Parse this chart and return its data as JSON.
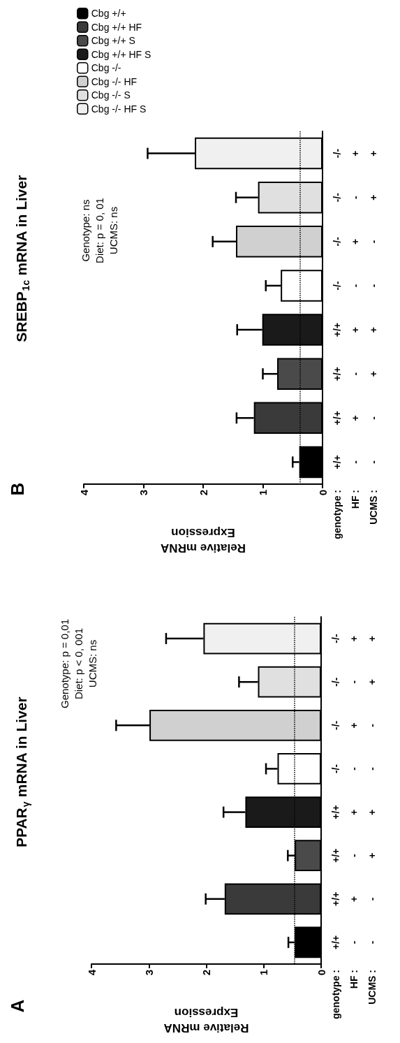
{
  "chart_data": [
    {
      "type": "bar",
      "orientation": "horizontal",
      "title": "PPAR$_{γ}$ mRNA in Liver",
      "xlabel": "Relative mRNA\nExpression",
      "ylabel": "genotype :\nHF :\nUCMS :",
      "categories": [
        "-/-\n+\n+",
        "-/-\n-\n+",
        "-/-\n+\n-",
        "-/-\n-\n-",
        "+/+\n+\n+",
        "+/+\n-\n+",
        "+/+\n+\n-",
        "+/+\n-\n-"
      ],
      "values": [
        2.05,
        1.1,
        2.99,
        0.76,
        1.32,
        0.46,
        1.68,
        0.46
      ],
      "colors": [
        "#f0f0f0",
        "#e0e0e0",
        "#d0d0d0",
        "#ffffff",
        "#1a1a1a",
        "#4a4a4a",
        "#3a3a3a",
        "#000000"
      ],
      "errors": [
        [
          2.05,
          2.7
        ],
        [
          1.1,
          1.43
        ],
        [
          2.99,
          3.57
        ],
        [
          0.76,
          0.96
        ],
        [
          1.32,
          1.7
        ],
        [
          0.46,
          0.58
        ],
        [
          1.68,
          2.01
        ],
        [
          0.46,
          0.57
        ]
      ],
      "xlim": [
        4,
        0
      ],
      "xticks": [
        0,
        1,
        2,
        3,
        4
      ],
      "ref_lines": [
        {
          "axis": "x",
          "value": 0.46,
          "line_style": "dotted",
          "color": "#000000"
        }
      ],
      "annotations": [
        "A",
        "Genotype: p = 0,01",
        "Diet: p < 0, 001",
        "UCMS: ns"
      ]
    },
    {
      "type": "bar",
      "orientation": "horizontal",
      "title": "SREBP$_{1c}$ mRNA in Liver",
      "xlabel": "Relative mRNA\nExpression",
      "ylabel": "genotype :\nHF :\nUCMS :",
      "categories": [
        "-/-\n+\n+",
        "-/-\n-\n+",
        "-/-\n+\n-",
        "-/-\n-\n-",
        "+/+\n+\n+",
        "+/+\n-\n+",
        "+/+\n+\n-",
        "+/+\n-\n-"
      ],
      "series": [
        {
          "name": "Cbg +/+",
          "color": "#000000",
          "values": [
            null,
            null,
            null,
            null,
            null,
            null,
            null,
            0.39
          ],
          "errors": [
            null,
            null,
            null,
            null,
            null,
            null,
            null,
            [
              0.39,
              0.5
            ]
          ]
        },
        {
          "name": "Cbg +/+ HF",
          "color": "#3a3a3a",
          "values": [
            null,
            null,
            null,
            null,
            null,
            null,
            1.15,
            null
          ],
          "errors": [
            null,
            null,
            null,
            null,
            null,
            null,
            [
              1.15,
              1.44
            ],
            null
          ]
        },
        {
          "name": "Cbg +/+ S",
          "color": "#4a4a4a",
          "values": [
            null,
            null,
            null,
            null,
            null,
            0.76,
            null,
            null
          ],
          "errors": [
            null,
            null,
            null,
            null,
            null,
            [
              0.76,
              1.0
            ],
            null,
            null
          ]
        },
        {
          "name": "Cbg +/+ HF S",
          "color": "#1a1a1a",
          "values": [
            null,
            null,
            null,
            null,
            1.01,
            null,
            null,
            null
          ],
          "errors": [
            null,
            null,
            null,
            null,
            [
              1.01,
              1.43
            ],
            null,
            null,
            null
          ]
        },
        {
          "name": "Cbg -/-",
          "color": "#ffffff",
          "values": [
            null,
            null,
            null,
            0.7,
            null,
            null,
            null,
            null
          ],
          "errors": [
            null,
            null,
            null,
            [
              0.7,
              0.95
            ],
            null,
            null,
            null,
            null
          ]
        },
        {
          "name": "Cbg -/- HF",
          "color": "#d0d0d0",
          "values": [
            null,
            null,
            1.45,
            null,
            null,
            null,
            null,
            null
          ],
          "errors": [
            null,
            null,
            [
              1.45,
              1.84
            ],
            null,
            null,
            null,
            null,
            null
          ]
        },
        {
          "name": "Cbg -/- S",
          "color": "#e0e0e0",
          "values": [
            null,
            1.08,
            null,
            null,
            null,
            null,
            null,
            null
          ],
          "errors": [
            null,
            [
              1.08,
              1.45
            ],
            null,
            null,
            null,
            null,
            null,
            null
          ]
        },
        {
          "name": "Cbg -/- HF S",
          "color": "#f0f0f0",
          "values": [
            2.14,
            null,
            null,
            null,
            null,
            null,
            null,
            null
          ],
          "errors": [
            [
              2.14,
              2.93
            ],
            null,
            null,
            null,
            null,
            null,
            null,
            null
          ]
        }
      ],
      "xlim": [
        4,
        0
      ],
      "xticks": [
        0,
        1,
        2,
        3,
        4
      ],
      "ref_lines": [
        {
          "axis": "x",
          "value": 0.38,
          "line_style": "dotted",
          "color": "#000000"
        }
      ],
      "legend": "top left",
      "annotations": [
        "B",
        "Genotype: ns",
        "Diet: p = 0, 01",
        "UCMS: ns"
      ]
    }
  ]
}
